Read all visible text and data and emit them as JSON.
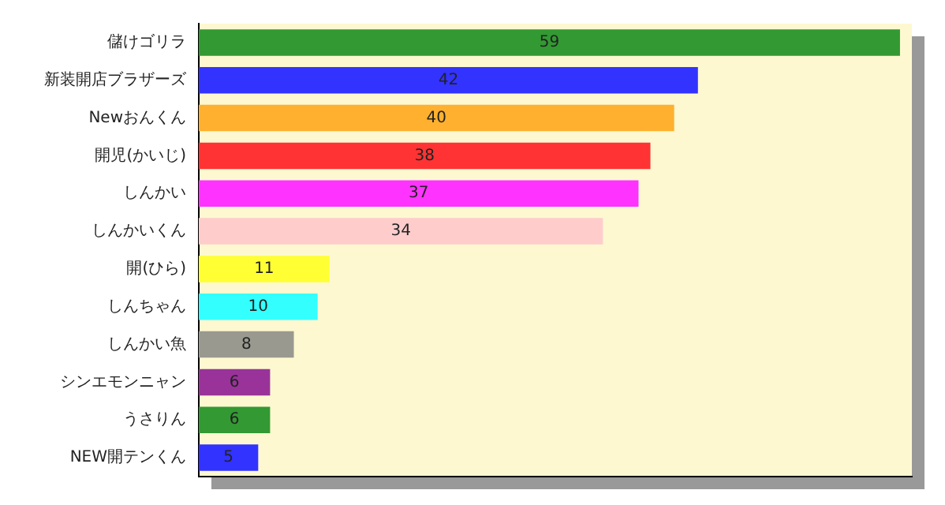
{
  "chart_data": {
    "type": "bar",
    "orientation": "horizontal",
    "categories": [
      "儲けゴリラ",
      "新装開店ブラザーズ",
      "Newおんくん",
      "開児(かいじ)",
      "しんかい",
      "しんかいくん",
      "開(ひら)",
      "しんちゃん",
      "しんかい魚",
      "シンエモンニャン",
      "うさりん",
      "NEW開テンくん"
    ],
    "values": [
      59,
      42,
      40,
      38,
      37,
      34,
      11,
      10,
      8,
      6,
      6,
      5
    ],
    "colors": [
      "#339933",
      "#3333ff",
      "#ffb02e",
      "#ff3333",
      "#ff33ff",
      "#ffcccc",
      "#ffff33",
      "#33ffff",
      "#999990",
      "#993399",
      "#339933",
      "#3333ff"
    ],
    "xlim": [
      0,
      60
    ],
    "data_labels": true,
    "tick_labels": "y",
    "grid": false,
    "legend": false
  }
}
